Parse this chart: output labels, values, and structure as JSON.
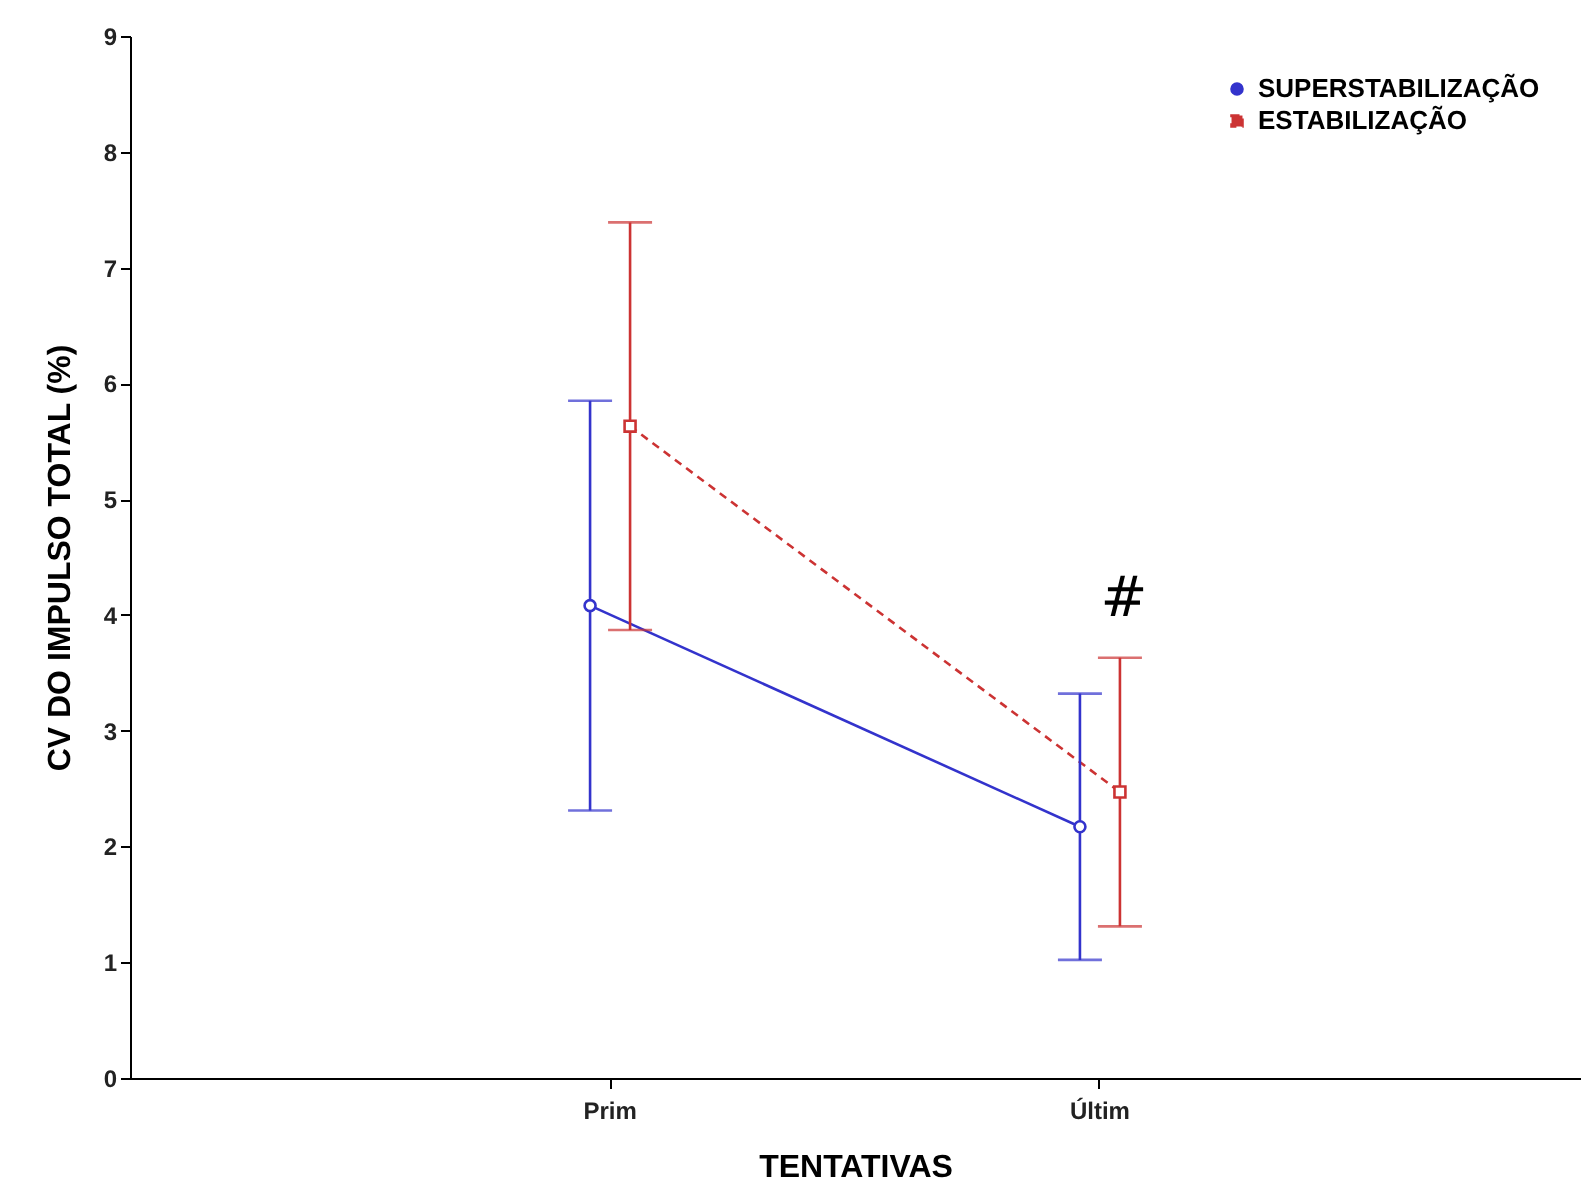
{
  "chart_data": {
    "type": "line",
    "xlabel": "TENTATIVAS",
    "ylabel": "CV DO IMPULSO TOTAL (%)",
    "categories": [
      "Prim",
      "Últim"
    ],
    "ylim": [
      0,
      9
    ],
    "yticks": [
      0,
      1,
      2,
      3,
      4,
      5,
      6,
      7,
      8,
      9
    ],
    "legend": "top right",
    "grid": false,
    "series": [
      {
        "name": "SUPERSTABILIZAÇÃO",
        "color": "#3333cc",
        "values": [
          4.08,
          2.17
        ],
        "errors": [
          1.77,
          1.15
        ],
        "marker": "circle",
        "line_style": "solid"
      },
      {
        "name": "ESTABILIZAÇÃO",
        "color": "#cc3333",
        "values": [
          5.63,
          2.47
        ],
        "errors": [
          1.76,
          1.16
        ],
        "marker": "square",
        "line_style": "dashed"
      }
    ],
    "annotations": [
      "#"
    ]
  }
}
